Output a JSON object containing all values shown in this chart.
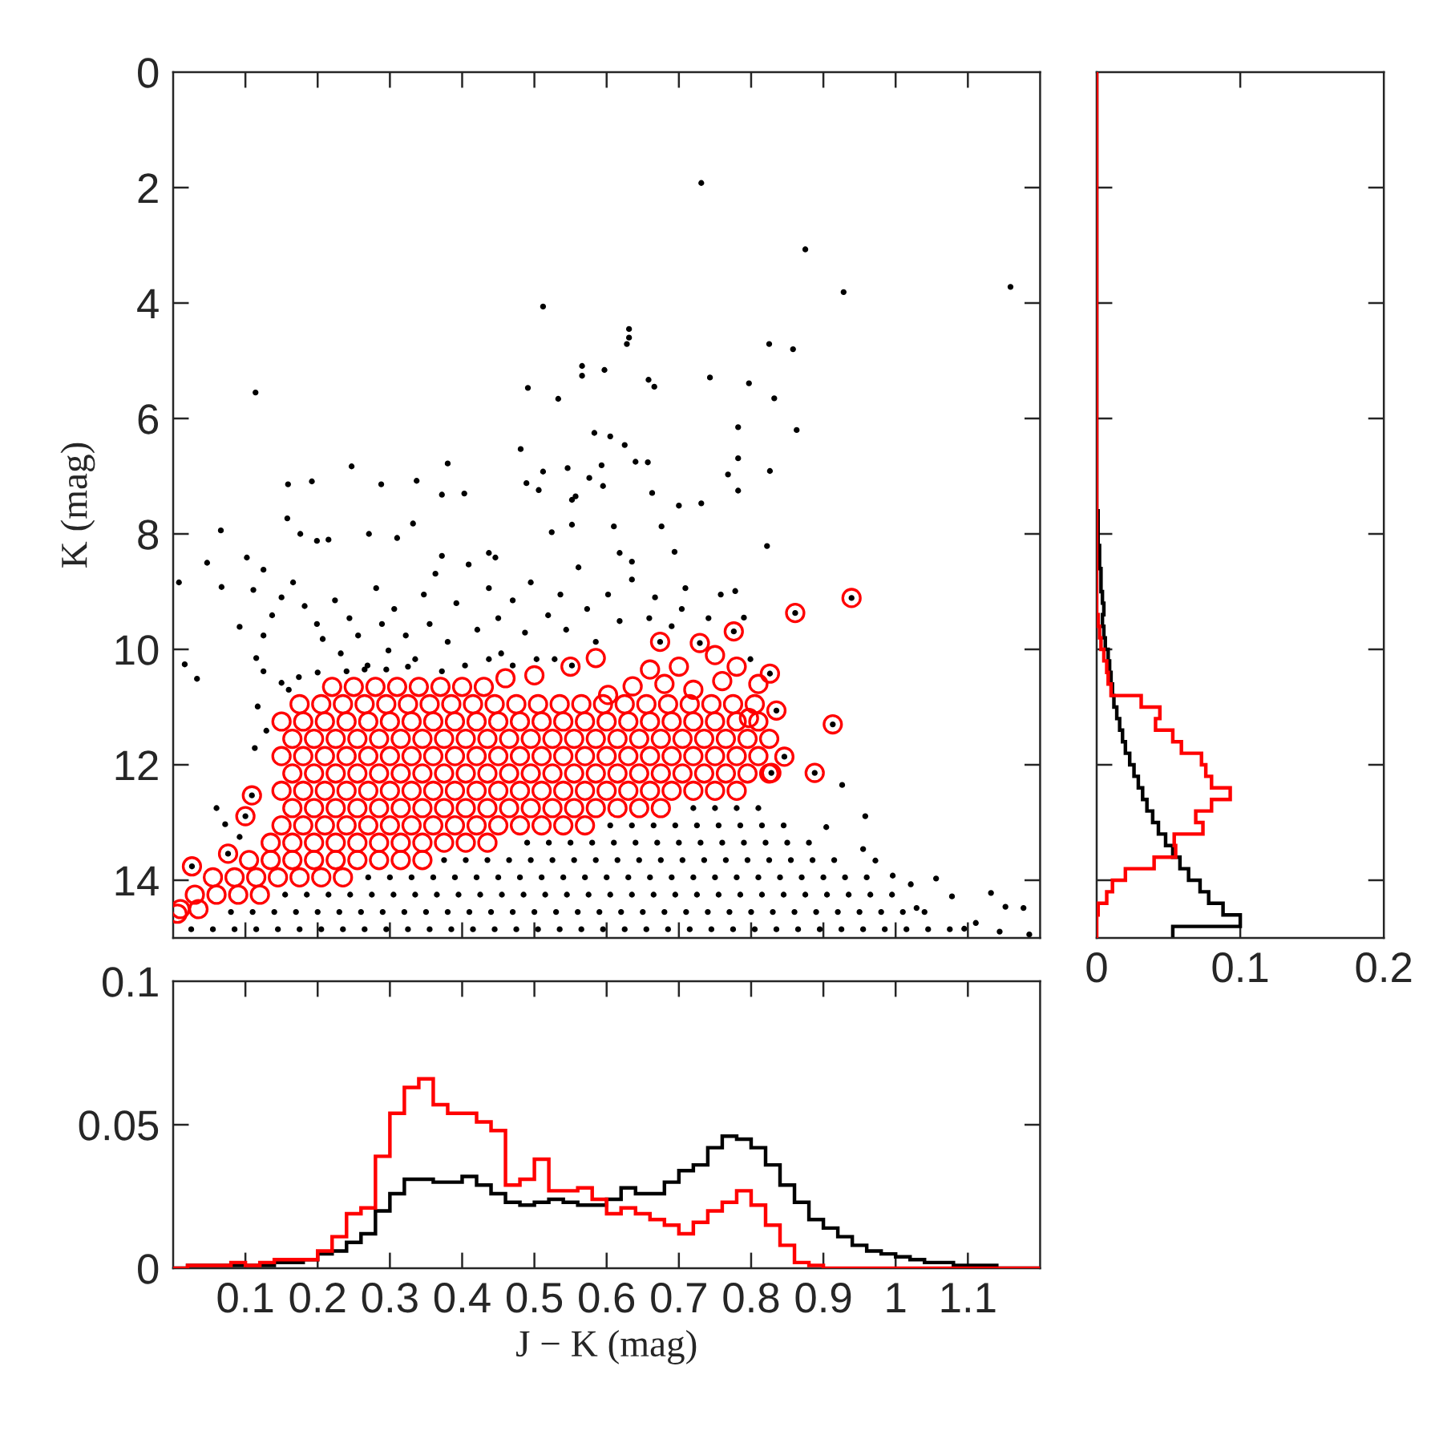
{
  "chart_data": [
    {
      "type": "scatter",
      "ylabel": "K (mag)",
      "xlim": [
        0,
        1.2
      ],
      "xticks": [
        0.1,
        0.2,
        0.3,
        0.4,
        0.5,
        0.6,
        0.7,
        0.8,
        0.9,
        1,
        1.1
      ],
      "ylim": [
        15,
        0
      ],
      "yticks": [
        0,
        2,
        4,
        6,
        8,
        10,
        12,
        14
      ],
      "tick_labels": "y",
      "marker": "circle",
      "series": [
        {
          "color": "#000000",
          "x": [
            0.731,
            0.875,
            0.928,
            1.159,
            0.512,
            0.631,
            0.631,
            0.628,
            0.825,
            0.858,
            0.114,
            0.566,
            0.566,
            0.597,
            0.491,
            0.533,
            0.658,
            0.666,
            0.743,
            0.797,
            0.832,
            0.782,
            0.863,
            0.583,
            0.605,
            0.625,
            0.481,
            0.64,
            0.657,
            0.782,
            0.247,
            0.38,
            0.546,
            0.512,
            0.593,
            0.826,
            0.768,
            0.576,
            0.595,
            0.159,
            0.192,
            0.288,
            0.337,
            0.489,
            0.506,
            0.372,
            0.403,
            0.557,
            0.782,
            0.663,
            0.731,
            0.066,
            0.047,
            0.067,
            0.008,
            0.016,
            0.033,
            0.102,
            0.125,
            0.111,
            0.158,
            0.176,
            0.199,
            0.215,
            0.271,
            0.31,
            0.332,
            0.372,
            0.363,
            0.409,
            0.437,
            0.446,
            0.524,
            0.552,
            0.552,
            0.61,
            0.618,
            0.635,
            0.7,
            0.676,
            0.694,
            0.822,
            0.092,
            0.115,
            0.125,
            0.137,
            0.15,
            0.166,
            0.182,
            0.199,
            0.207,
            0.224,
            0.232,
            0.244,
            0.256,
            0.269,
            0.281,
            0.289,
            0.298,
            0.306,
            0.322,
            0.335,
            0.347,
            0.355,
            0.38,
            0.392,
            0.404,
            0.421,
            0.437,
            0.45,
            0.454,
            0.47,
            0.487,
            0.495,
            0.503,
            0.519,
            0.536,
            0.544,
            0.561,
            0.573,
            0.585,
            0.602,
            0.618,
            0.635,
            0.659,
            0.667,
            0.69,
            0.704,
            0.709,
            0.741,
            0.758,
            0.778,
            0.79,
            0.799,
            0.125,
            0.15,
            0.174,
            0.2,
            0.24,
            0.265,
            0.295,
            0.325,
            0.372,
            0.16,
            0.117,
            0.129,
            0.113,
            0.437,
            0.47,
            0.528,
            0.552,
            0.072,
            0.092,
            0.06,
            0.904,
            0.926,
            0.958,
            1.056,
            1.132,
            1.152,
            1.177,
            1.185,
            0.996,
            1.021,
            1.078,
            1.111,
            1.095,
            1.144,
            1.029,
            0.955,
            0.972,
            0.939,
            0.861,
            0.776,
            0.913,
            0.888,
            0.846,
            0.828,
            0.835,
            0.826,
            0.674,
            0.729,
            0.109,
            0.1,
            0.076,
            0.026,
            0.72,
            0.75,
            0.78,
            0.81,
            0.605,
            0.635,
            0.665,
            0.695,
            0.725,
            0.755,
            0.785,
            0.815,
            0.845,
            0.49,
            0.52,
            0.55,
            0.58,
            0.61,
            0.64,
            0.67,
            0.7,
            0.73,
            0.76,
            0.79,
            0.82,
            0.85,
            0.88,
            0.375,
            0.405,
            0.435,
            0.465,
            0.495,
            0.525,
            0.555,
            0.585,
            0.615,
            0.645,
            0.675,
            0.705,
            0.735,
            0.765,
            0.795,
            0.825,
            0.855,
            0.885,
            0.915,
            0.27,
            0.3,
            0.33,
            0.36,
            0.39,
            0.42,
            0.45,
            0.48,
            0.51,
            0.54,
            0.57,
            0.6,
            0.63,
            0.66,
            0.69,
            0.72,
            0.75,
            0.78,
            0.81,
            0.84,
            0.87,
            0.9,
            0.93,
            0.96,
            0.155,
            0.185,
            0.215,
            0.245,
            0.275,
            0.305,
            0.335,
            0.365,
            0.395,
            0.425,
            0.455,
            0.485,
            0.515,
            0.545,
            0.575,
            0.605,
            0.635,
            0.665,
            0.695,
            0.725,
            0.755,
            0.785,
            0.815,
            0.845,
            0.875,
            0.905,
            0.935,
            0.965,
            0.995,
            0.08,
            0.11,
            0.14,
            0.17,
            0.2,
            0.23,
            0.26,
            0.29,
            0.32,
            0.35,
            0.38,
            0.41,
            0.44,
            0.47,
            0.5,
            0.53,
            0.56,
            0.59,
            0.62,
            0.65,
            0.68,
            0.71,
            0.74,
            0.77,
            0.8,
            0.83,
            0.86,
            0.89,
            0.92,
            0.95,
            0.98,
            1.01,
            1.04,
            0.025,
            0.055,
            0.085,
            0.115,
            0.145,
            0.175,
            0.205,
            0.235,
            0.265,
            0.295,
            0.325,
            0.355,
            0.385,
            0.415,
            0.445,
            0.475,
            0.505,
            0.535,
            0.565,
            0.595,
            0.625,
            0.655,
            0.685,
            0.715,
            0.745,
            0.775,
            0.805,
            0.835,
            0.865,
            0.895,
            0.925,
            0.955,
            0.985,
            1.015,
            1.045,
            1.075
          ],
          "values": [
            1.92,
            3.07,
            3.81,
            3.72,
            4.06,
            4.45,
            4.6,
            4.71,
            4.71,
            4.8,
            5.55,
            5.09,
            5.26,
            5.16,
            5.47,
            5.66,
            5.33,
            5.45,
            5.29,
            5.39,
            5.65,
            6.15,
            6.2,
            6.25,
            6.31,
            6.46,
            6.53,
            6.75,
            6.76,
            6.69,
            6.83,
            6.78,
            6.86,
            6.92,
            6.81,
            6.91,
            6.97,
            7.03,
            7.17,
            7.14,
            7.09,
            7.14,
            7.08,
            7.12,
            7.24,
            7.32,
            7.3,
            7.35,
            7.25,
            7.29,
            7.47,
            7.94,
            8.5,
            8.92,
            8.84,
            10.26,
            10.51,
            8.41,
            8.62,
            8.97,
            7.73,
            8.0,
            8.12,
            8.1,
            8.0,
            8.07,
            7.82,
            8.38,
            8.69,
            8.53,
            8.33,
            8.41,
            7.97,
            7.84,
            7.41,
            7.87,
            8.33,
            8.48,
            7.51,
            7.87,
            8.31,
            8.21,
            9.61,
            10.15,
            9.76,
            9.41,
            9.1,
            8.84,
            9.25,
            9.56,
            9.82,
            9.15,
            10.07,
            9.46,
            9.76,
            10.28,
            8.94,
            9.56,
            10.02,
            9.3,
            9.76,
            10.17,
            9.05,
            9.56,
            9.87,
            9.2,
            10.28,
            9.66,
            8.94,
            9.46,
            10.07,
            9.15,
            9.71,
            8.84,
            10.17,
            9.41,
            9.05,
            9.66,
            8.58,
            9.3,
            9.87,
            9.05,
            9.51,
            8.79,
            9.46,
            9.1,
            9.6,
            9.3,
            8.94,
            9.46,
            9.05,
            8.99,
            9.45,
            10.17,
            10.38,
            10.58,
            10.48,
            10.4,
            10.38,
            10.35,
            10.35,
            10.3,
            10.38,
            10.7,
            10.99,
            11.41,
            11.71,
            10.17,
            10.28,
            10.17,
            10.28,
            13.03,
            13.25,
            12.75,
            13.08,
            12.35,
            12.89,
            13.97,
            14.22,
            14.46,
            14.48,
            14.94,
            13.92,
            14.07,
            14.28,
            14.74,
            14.84,
            14.89,
            14.48,
            13.46,
            13.66,
            9.11,
            9.37,
            9.69,
            11.3,
            12.14,
            11.86,
            12.14,
            11.06,
            10.42,
            9.87,
            9.89,
            12.53,
            12.89,
            13.54,
            13.76,
            12.75,
            12.75,
            12.75,
            12.75,
            13.05,
            13.05,
            13.05,
            13.05,
            13.05,
            13.05,
            13.05,
            13.05,
            13.05,
            13.35,
            13.35,
            13.35,
            13.35,
            13.35,
            13.35,
            13.35,
            13.35,
            13.35,
            13.35,
            13.35,
            13.35,
            13.35,
            13.35,
            13.65,
            13.65,
            13.65,
            13.65,
            13.65,
            13.65,
            13.65,
            13.65,
            13.65,
            13.65,
            13.65,
            13.65,
            13.65,
            13.65,
            13.65,
            13.65,
            13.65,
            13.65,
            13.65,
            13.95,
            13.95,
            13.95,
            13.95,
            13.95,
            13.95,
            13.95,
            13.95,
            13.95,
            13.95,
            13.95,
            13.95,
            13.95,
            13.95,
            13.95,
            13.95,
            13.95,
            13.95,
            13.95,
            13.95,
            13.95,
            13.95,
            13.95,
            13.95,
            14.25,
            14.25,
            14.25,
            14.25,
            14.25,
            14.25,
            14.25,
            14.25,
            14.25,
            14.25,
            14.25,
            14.25,
            14.25,
            14.25,
            14.25,
            14.25,
            14.25,
            14.25,
            14.25,
            14.25,
            14.25,
            14.25,
            14.25,
            14.25,
            14.25,
            14.25,
            14.25,
            14.25,
            14.25,
            14.55,
            14.55,
            14.55,
            14.55,
            14.55,
            14.55,
            14.55,
            14.55,
            14.55,
            14.55,
            14.55,
            14.55,
            14.55,
            14.55,
            14.55,
            14.55,
            14.55,
            14.55,
            14.55,
            14.55,
            14.55,
            14.55,
            14.55,
            14.55,
            14.55,
            14.55,
            14.55,
            14.55,
            14.55,
            14.55,
            14.55,
            14.55,
            14.55,
            14.85,
            14.85,
            14.85,
            14.85,
            14.85,
            14.85,
            14.85,
            14.85,
            14.85,
            14.85,
            14.85,
            14.85,
            14.85,
            14.85,
            14.85,
            14.85,
            14.85,
            14.85,
            14.85,
            14.85,
            14.85,
            14.85,
            14.85,
            14.85,
            14.85,
            14.85,
            14.85,
            14.85,
            14.85,
            14.85,
            14.85,
            14.85,
            14.85,
            14.85,
            14.85,
            14.85
          ]
        },
        {
          "color": "#ff0000",
          "x": [
            0.939,
            0.861,
            0.776,
            0.913,
            0.888,
            0.846,
            0.828,
            0.835,
            0.826,
            0.674,
            0.729,
            0.109,
            0.1,
            0.076,
            0.026,
            0.006,
            0.636,
            0.602,
            0.585,
            0.55,
            0.5,
            0.46,
            0.7,
            0.75,
            0.78,
            0.66,
            0.797,
            0.81,
            0.76,
            0.72,
            0.68,
            0.22,
            0.25,
            0.28,
            0.31,
            0.34,
            0.37,
            0.4,
            0.43,
            0.175,
            0.205,
            0.235,
            0.265,
            0.295,
            0.325,
            0.355,
            0.385,
            0.415,
            0.445,
            0.475,
            0.505,
            0.535,
            0.565,
            0.595,
            0.625,
            0.655,
            0.685,
            0.715,
            0.745,
            0.775,
            0.805,
            0.15,
            0.18,
            0.21,
            0.24,
            0.27,
            0.3,
            0.33,
            0.36,
            0.39,
            0.42,
            0.45,
            0.48,
            0.51,
            0.54,
            0.57,
            0.6,
            0.63,
            0.66,
            0.69,
            0.72,
            0.75,
            0.78,
            0.81,
            0.165,
            0.195,
            0.225,
            0.255,
            0.285,
            0.315,
            0.345,
            0.375,
            0.405,
            0.435,
            0.465,
            0.495,
            0.525,
            0.555,
            0.585,
            0.615,
            0.645,
            0.675,
            0.705,
            0.735,
            0.765,
            0.795,
            0.825,
            0.15,
            0.18,
            0.21,
            0.24,
            0.27,
            0.3,
            0.33,
            0.36,
            0.39,
            0.42,
            0.45,
            0.48,
            0.51,
            0.54,
            0.57,
            0.6,
            0.63,
            0.66,
            0.69,
            0.72,
            0.75,
            0.78,
            0.81,
            0.165,
            0.195,
            0.225,
            0.255,
            0.285,
            0.315,
            0.345,
            0.375,
            0.405,
            0.435,
            0.465,
            0.495,
            0.525,
            0.555,
            0.585,
            0.615,
            0.645,
            0.675,
            0.705,
            0.735,
            0.765,
            0.795,
            0.825,
            0.15,
            0.18,
            0.21,
            0.24,
            0.27,
            0.3,
            0.33,
            0.36,
            0.39,
            0.42,
            0.45,
            0.48,
            0.51,
            0.54,
            0.57,
            0.6,
            0.63,
            0.66,
            0.69,
            0.72,
            0.75,
            0.78,
            0.165,
            0.195,
            0.225,
            0.255,
            0.285,
            0.315,
            0.345,
            0.375,
            0.405,
            0.435,
            0.465,
            0.495,
            0.525,
            0.555,
            0.585,
            0.615,
            0.645,
            0.675,
            0.15,
            0.18,
            0.21,
            0.24,
            0.27,
            0.3,
            0.33,
            0.36,
            0.39,
            0.42,
            0.45,
            0.48,
            0.51,
            0.54,
            0.57,
            0.135,
            0.165,
            0.195,
            0.225,
            0.255,
            0.285,
            0.315,
            0.345,
            0.375,
            0.405,
            0.435,
            0.105,
            0.135,
            0.165,
            0.195,
            0.225,
            0.255,
            0.285,
            0.315,
            0.345,
            0.055,
            0.085,
            0.115,
            0.145,
            0.175,
            0.205,
            0.235,
            0.03,
            0.06,
            0.09,
            0.12,
            0.01,
            0.035
          ],
          "values": [
            9.11,
            9.37,
            9.69,
            11.3,
            12.14,
            11.86,
            12.14,
            11.06,
            10.42,
            9.87,
            9.89,
            12.53,
            12.89,
            13.54,
            13.76,
            14.58,
            10.64,
            10.79,
            10.15,
            10.3,
            10.45,
            10.5,
            10.3,
            10.1,
            10.3,
            10.35,
            11.19,
            10.6,
            10.55,
            10.7,
            10.6,
            10.65,
            10.65,
            10.65,
            10.65,
            10.65,
            10.65,
            10.65,
            10.65,
            10.95,
            10.95,
            10.95,
            10.95,
            10.95,
            10.95,
            10.95,
            10.95,
            10.95,
            10.95,
            10.95,
            10.95,
            10.95,
            10.95,
            10.95,
            10.95,
            10.95,
            10.95,
            10.95,
            10.95,
            10.95,
            10.95,
            11.25,
            11.25,
            11.25,
            11.25,
            11.25,
            11.25,
            11.25,
            11.25,
            11.25,
            11.25,
            11.25,
            11.25,
            11.25,
            11.25,
            11.25,
            11.25,
            11.25,
            11.25,
            11.25,
            11.25,
            11.25,
            11.25,
            11.25,
            11.55,
            11.55,
            11.55,
            11.55,
            11.55,
            11.55,
            11.55,
            11.55,
            11.55,
            11.55,
            11.55,
            11.55,
            11.55,
            11.55,
            11.55,
            11.55,
            11.55,
            11.55,
            11.55,
            11.55,
            11.55,
            11.55,
            11.55,
            11.85,
            11.85,
            11.85,
            11.85,
            11.85,
            11.85,
            11.85,
            11.85,
            11.85,
            11.85,
            11.85,
            11.85,
            11.85,
            11.85,
            11.85,
            11.85,
            11.85,
            11.85,
            11.85,
            11.85,
            11.85,
            11.85,
            11.85,
            12.15,
            12.15,
            12.15,
            12.15,
            12.15,
            12.15,
            12.15,
            12.15,
            12.15,
            12.15,
            12.15,
            12.15,
            12.15,
            12.15,
            12.15,
            12.15,
            12.15,
            12.15,
            12.15,
            12.15,
            12.15,
            12.15,
            12.15,
            12.45,
            12.45,
            12.45,
            12.45,
            12.45,
            12.45,
            12.45,
            12.45,
            12.45,
            12.45,
            12.45,
            12.45,
            12.45,
            12.45,
            12.45,
            12.45,
            12.45,
            12.45,
            12.45,
            12.45,
            12.45,
            12.45,
            12.75,
            12.75,
            12.75,
            12.75,
            12.75,
            12.75,
            12.75,
            12.75,
            12.75,
            12.75,
            12.75,
            12.75,
            12.75,
            12.75,
            12.75,
            12.75,
            12.75,
            12.75,
            13.05,
            13.05,
            13.05,
            13.05,
            13.05,
            13.05,
            13.05,
            13.05,
            13.05,
            13.05,
            13.05,
            13.05,
            13.05,
            13.05,
            13.05,
            13.35,
            13.35,
            13.35,
            13.35,
            13.35,
            13.35,
            13.35,
            13.35,
            13.35,
            13.35,
            13.35,
            13.65,
            13.65,
            13.65,
            13.65,
            13.65,
            13.65,
            13.65,
            13.65,
            13.65,
            13.95,
            13.95,
            13.95,
            13.95,
            13.95,
            13.95,
            13.95,
            14.25,
            14.25,
            14.25,
            14.25,
            14.5,
            14.5
          ]
        }
      ]
    },
    {
      "type": "histogram",
      "xlabel": "J − K (mag)",
      "xlim": [
        0,
        1.2
      ],
      "xticks": [
        0.1,
        0.2,
        0.3,
        0.4,
        0.5,
        0.6,
        0.7,
        0.8,
        0.9,
        1,
        1.1
      ],
      "ylim": [
        0,
        0.1
      ],
      "yticks": [
        0,
        0.05,
        0.1
      ],
      "bins": [
        0,
        0.02,
        0.04,
        0.06,
        0.08,
        0.1,
        0.12,
        0.14,
        0.16,
        0.18,
        0.2,
        0.22,
        0.24,
        0.26,
        0.28,
        0.3,
        0.32,
        0.34,
        0.36,
        0.38,
        0.4,
        0.42,
        0.44,
        0.46,
        0.48,
        0.5,
        0.52,
        0.54,
        0.56,
        0.58,
        0.6,
        0.62,
        0.64,
        0.66,
        0.68,
        0.7,
        0.72,
        0.74,
        0.76,
        0.78,
        0.8,
        0.82,
        0.84,
        0.86,
        0.88,
        0.9,
        0.92,
        0.94,
        0.96,
        0.98,
        1,
        1.02,
        1.04,
        1.06,
        1.08,
        1.1,
        1.12,
        1.14,
        1.16,
        1.18,
        1.2
      ],
      "series": [
        {
          "color": "#000000",
          "values": [
            0,
            0.001,
            0.001,
            0.001,
            0.001,
            0.001,
            0.001,
            0.002,
            0.002,
            0.003,
            0.005,
            0.006,
            0.009,
            0.012,
            0.02,
            0.026,
            0.031,
            0.031,
            0.03,
            0.03,
            0.032,
            0.029,
            0.026,
            0.023,
            0.022,
            0.023,
            0.024,
            0.023,
            0.022,
            0.022,
            0.024,
            0.028,
            0.026,
            0.026,
            0.03,
            0.034,
            0.036,
            0.042,
            0.046,
            0.045,
            0.042,
            0.036,
            0.029,
            0.023,
            0.017,
            0.014,
            0.011,
            0.008,
            0.006,
            0.005,
            0.004,
            0.003,
            0.002,
            0.002,
            0.001,
            0.001,
            0.001,
            0,
            0,
            0
          ]
        },
        {
          "color": "#ff0000",
          "values": [
            0,
            0.001,
            0.001,
            0.001,
            0.002,
            0.001,
            0.002,
            0.003,
            0.003,
            0.003,
            0.006,
            0.011,
            0.019,
            0.021,
            0.039,
            0.054,
            0.063,
            0.066,
            0.057,
            0.054,
            0.054,
            0.051,
            0.048,
            0.029,
            0.031,
            0.038,
            0.027,
            0.027,
            0.028,
            0.024,
            0.019,
            0.021,
            0.019,
            0.017,
            0.015,
            0.012,
            0.016,
            0.02,
            0.023,
            0.027,
            0.022,
            0.015,
            0.008,
            0.002,
            0.001,
            0,
            0,
            0,
            0,
            0,
            0,
            0,
            0,
            0,
            0,
            0,
            0,
            0,
            0,
            0
          ]
        }
      ]
    },
    {
      "type": "histogram",
      "orientation": "horizontal",
      "xlim": [
        0,
        0.2
      ],
      "xticks": [
        0,
        0.1,
        0.2
      ],
      "ylim": [
        15,
        0
      ],
      "yticks": [
        0,
        2,
        4,
        6,
        8,
        10,
        12,
        14
      ],
      "tick_labels": "x",
      "bins": [
        0,
        0.2,
        0.4,
        0.6,
        0.8,
        1,
        1.2,
        1.4,
        1.6,
        1.8,
        2,
        2.2,
        2.4,
        2.6,
        2.8,
        3,
        3.2,
        3.4,
        3.6,
        3.8,
        4,
        4.2,
        4.4,
        4.6,
        4.8,
        5,
        5.2,
        5.4,
        5.6,
        5.8,
        6,
        6.2,
        6.4,
        6.6,
        6.8,
        7,
        7.2,
        7.4,
        7.6,
        7.8,
        8,
        8.2,
        8.4,
        8.6,
        8.8,
        9,
        9.2,
        9.4,
        9.6,
        9.8,
        10,
        10.2,
        10.4,
        10.6,
        10.8,
        11,
        11.2,
        11.4,
        11.6,
        11.8,
        12,
        12.2,
        12.4,
        12.6,
        12.8,
        13,
        13.2,
        13.4,
        13.6,
        13.8,
        14,
        14.2,
        14.4,
        14.6,
        14.8,
        15
      ],
      "series": [
        {
          "color": "#000000",
          "values": [
            0,
            0,
            0,
            0,
            0,
            0,
            0,
            0,
            0,
            0,
            0,
            0,
            0,
            0,
            0,
            0,
            0,
            0,
            0,
            0,
            0,
            0,
            0,
            0,
            0,
            0,
            0,
            0,
            0,
            0,
            0,
            0,
            0,
            0,
            0,
            0,
            0,
            0,
            0.001,
            0.001,
            0.001,
            0.002,
            0.002,
            0.003,
            0.003,
            0.004,
            0.005,
            0.004,
            0.005,
            0.006,
            0.008,
            0.009,
            0.01,
            0.011,
            0.012,
            0.014,
            0.016,
            0.018,
            0.02,
            0.023,
            0.026,
            0.029,
            0.032,
            0.035,
            0.039,
            0.043,
            0.048,
            0.053,
            0.058,
            0.064,
            0.072,
            0.078,
            0.088,
            0.1,
            0.053
          ]
        },
        {
          "color": "#ff0000",
          "values": [
            0,
            0,
            0,
            0,
            0,
            0,
            0,
            0,
            0,
            0,
            0,
            0,
            0,
            0,
            0,
            0,
            0,
            0,
            0,
            0,
            0,
            0,
            0,
            0,
            0,
            0,
            0,
            0,
            0,
            0,
            0,
            0,
            0,
            0,
            0,
            0,
            0,
            0,
            0,
            0,
            0,
            0,
            0,
            0,
            0,
            0,
            0,
            0.001,
            0.002,
            0.003,
            0.005,
            0.007,
            0.008,
            0.01,
            0.031,
            0.044,
            0.041,
            0.053,
            0.059,
            0.073,
            0.076,
            0.08,
            0.093,
            0.08,
            0.069,
            0.074,
            0.054,
            0.055,
            0.04,
            0.02,
            0.011,
            0.007,
            0.001,
            0,
            0
          ]
        }
      ]
    }
  ]
}
